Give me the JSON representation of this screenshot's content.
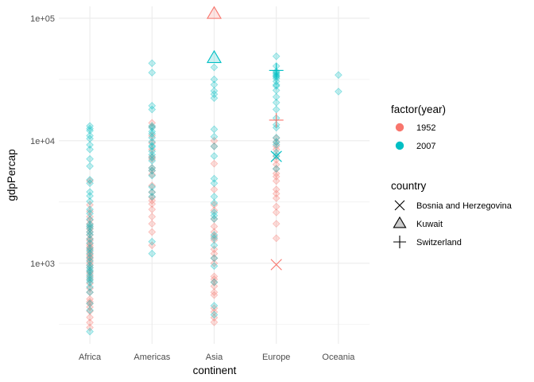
{
  "chart_data": {
    "type": "scatter",
    "xlabel": "continent",
    "ylabel": "gdpPercap",
    "y_scale": "log10",
    "ylim": [
      220,
      125000
    ],
    "categories": [
      "Africa",
      "Americas",
      "Asia",
      "Europe",
      "Oceania"
    ],
    "y_ticks": [
      {
        "value": 1000,
        "label": "1e+03"
      },
      {
        "value": 10000,
        "label": "1e+04"
      },
      {
        "value": 100000,
        "label": "1e+05"
      }
    ],
    "grid": true,
    "legend_position": "right",
    "colors": {
      "1952": "#F8766D",
      "2007": "#00BFC4",
      "grid": "#ebebeb"
    },
    "legend": {
      "color_title": "factor(year)",
      "color_entries": [
        "1952",
        "2007"
      ],
      "shape_title": "country",
      "shape_entries": [
        {
          "label": "Bosnia and Herzegovina",
          "shape": "cross-x"
        },
        {
          "label": "Kuwait",
          "shape": "triangle"
        },
        {
          "label": "Switzerland",
          "shape": "plus"
        }
      ]
    },
    "series": [
      {
        "name": "1952",
        "points": {
          "Africa": [
            299,
            328,
            362,
            406,
            439,
            468,
            485,
            510,
            580,
            625,
            685,
            735,
            780,
            828,
            860,
            920,
            970,
            1010,
            1060,
            1100,
            1145,
            1180,
            1240,
            1300,
            1350,
            1400,
            1450,
            1530,
            1590,
            1700,
            1800,
            1900,
            1990,
            2100,
            2250,
            2400,
            2650,
            3000,
            4700
          ],
          "Americas": [
            1400,
            1800,
            2100,
            2400,
            2750,
            3050,
            3250,
            3450,
            3800,
            4300,
            5300,
            5700,
            6000,
            7100,
            7400,
            8500,
            9600,
            11000,
            13000,
            14000
          ],
          "Asia": [
            330,
            360,
            400,
            430,
            550,
            580,
            650,
            700,
            740,
            780,
            1000,
            1100,
            1200,
            1300,
            1550,
            1650,
            1800,
            2000,
            2300,
            2700,
            3000,
            4000,
            6500,
            9000,
            10000
          ],
          "Europe": [
            1600,
            2100,
            2600,
            2900,
            3400,
            3700,
            4000,
            4700,
            5100,
            5400,
            5900,
            6400,
            7000,
            7500,
            8500,
            9000,
            9700,
            10500
          ]
        }
      },
      {
        "name": "2007",
        "points": {
          "Africa": [
            277,
            413,
            470,
            580,
            640,
            700,
            730,
            760,
            800,
            850,
            880,
            920,
            960,
            1040,
            1110,
            1200,
            1270,
            1330,
            1460,
            1570,
            1710,
            1800,
            1930,
            2010,
            2080,
            2280,
            2550,
            2750,
            3200,
            3550,
            3820,
            4500,
            4800,
            6200,
            7100,
            8500,
            9250,
            10400,
            11000,
            12100,
            12550,
            13200
          ],
          "Americas": [
            1200,
            1500,
            3500,
            3800,
            4200,
            5200,
            5700,
            6000,
            6870,
            7300,
            7700,
            8200,
            8900,
            9100,
            9800,
            10600,
            11400,
            11900,
            12800,
            13200,
            18000,
            19300,
            36000,
            42900
          ],
          "Asia": [
            380,
            450,
            700,
            950,
            1100,
            1400,
            1600,
            1700,
            2300,
            2450,
            2600,
            3100,
            3500,
            4500,
            4900,
            7500,
            9000,
            10800,
            12400,
            22300,
            24000,
            25500,
            28700,
            31700,
            39700
          ],
          "Europe": [
            5900,
            7500,
            8000,
            9300,
            9800,
            10600,
            12800,
            13500,
            15300,
            18000,
            20500,
            22800,
            25800,
            28000,
            28600,
            30500,
            32200,
            33200,
            33700,
            34400,
            35300,
            36100,
            36800,
            40700,
            48900
          ],
          "Oceania": [
            25200,
            34400
          ]
        }
      }
    ],
    "highlighted": [
      {
        "country": "Bosnia and Herzegovina",
        "year": "1952",
        "continent": "Europe",
        "value": 974
      },
      {
        "country": "Bosnia and Herzegovina",
        "year": "2007",
        "continent": "Europe",
        "value": 7446
      },
      {
        "country": "Kuwait",
        "year": "1952",
        "continent": "Asia",
        "value": 108382
      },
      {
        "country": "Kuwait",
        "year": "2007",
        "continent": "Asia",
        "value": 47307
      },
      {
        "country": "Switzerland",
        "year": "1952",
        "continent": "Europe",
        "value": 14734
      },
      {
        "country": "Switzerland",
        "year": "2007",
        "continent": "Europe",
        "value": 37506
      }
    ]
  }
}
